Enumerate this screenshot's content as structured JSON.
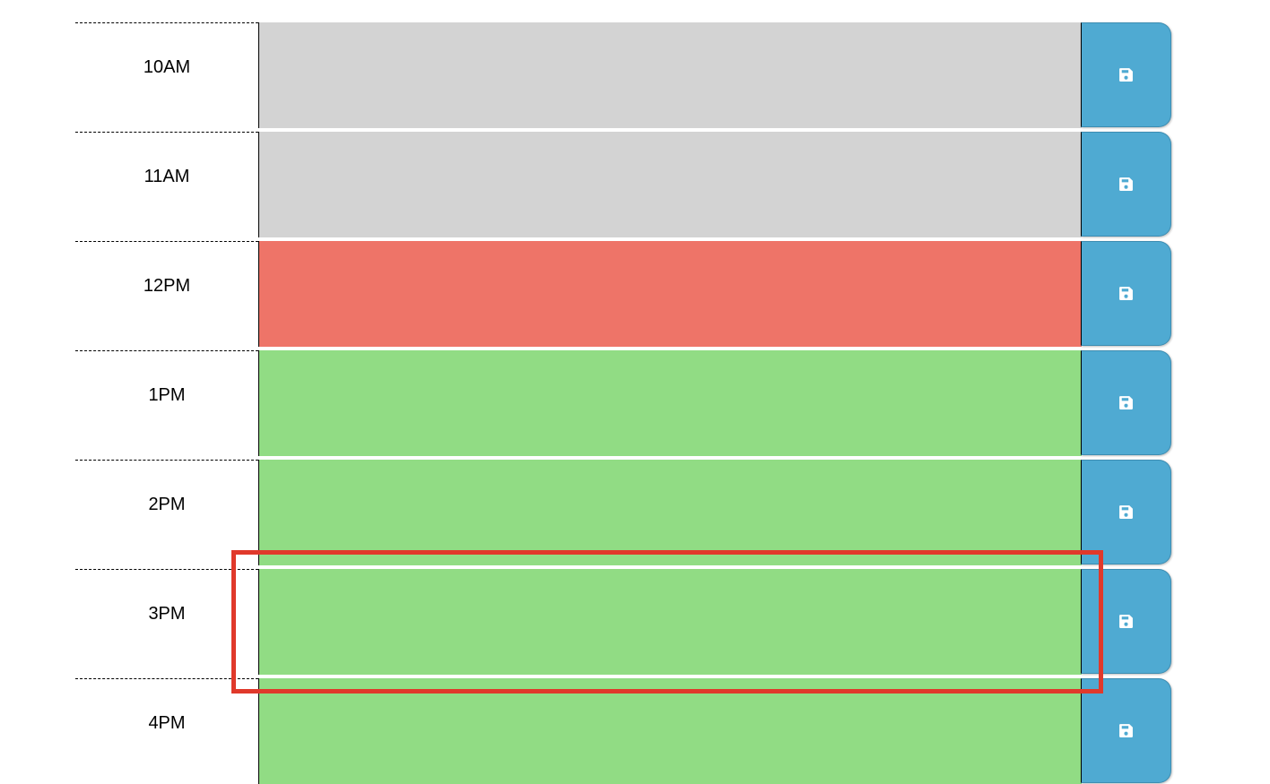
{
  "scheduler": {
    "rows": [
      {
        "hour_label": "10AM",
        "event_text": "",
        "status": "past",
        "save_icon": "floppy-disk-icon"
      },
      {
        "hour_label": "11AM",
        "event_text": "",
        "status": "past",
        "save_icon": "floppy-disk-icon"
      },
      {
        "hour_label": "12PM",
        "event_text": "",
        "status": "present",
        "save_icon": "floppy-disk-icon"
      },
      {
        "hour_label": "1PM",
        "event_text": "",
        "status": "future",
        "save_icon": "floppy-disk-icon"
      },
      {
        "hour_label": "2PM",
        "event_text": "",
        "status": "future",
        "save_icon": "floppy-disk-icon"
      },
      {
        "hour_label": "3PM",
        "event_text": "",
        "status": "future",
        "save_icon": "floppy-disk-icon"
      },
      {
        "hour_label": "4PM",
        "event_text": "",
        "status": "future",
        "save_icon": "floppy-disk-icon"
      }
    ],
    "highlighted_row": "3PM"
  },
  "colors": {
    "past": "#d3d3d3",
    "present": "#ee7468",
    "future": "#91dc84",
    "save_button": "#4faad2",
    "highlight_outline": "#e0392b"
  }
}
